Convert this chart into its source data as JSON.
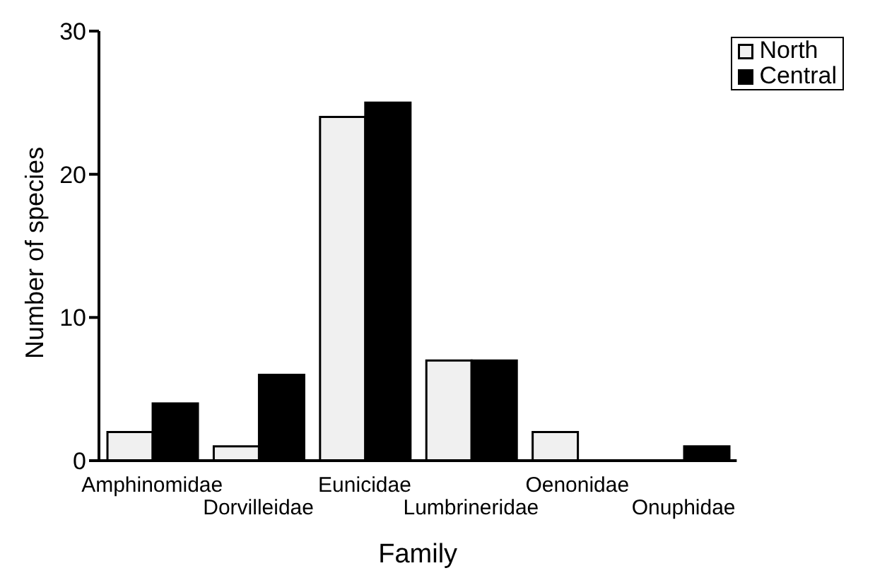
{
  "chart_data": {
    "type": "bar",
    "xlabel": "Family",
    "ylabel": "Number of species",
    "categories": [
      "Amphinomidae",
      "Dorvilleidae",
      "Eunicidae",
      "Lumbrineridae",
      "Oenonidae",
      "Onuphidae"
    ],
    "series": [
      {
        "name": "North",
        "color": "#f0f0f0",
        "values": [
          2,
          1,
          24,
          7,
          2,
          0
        ]
      },
      {
        "name": "Central",
        "color": "#000000",
        "values": [
          4,
          6,
          25,
          7,
          0,
          1
        ]
      }
    ],
    "ylim": [
      0,
      30
    ],
    "yticks": [
      0,
      10,
      20,
      30
    ],
    "grid": false,
    "legend": "top right"
  }
}
